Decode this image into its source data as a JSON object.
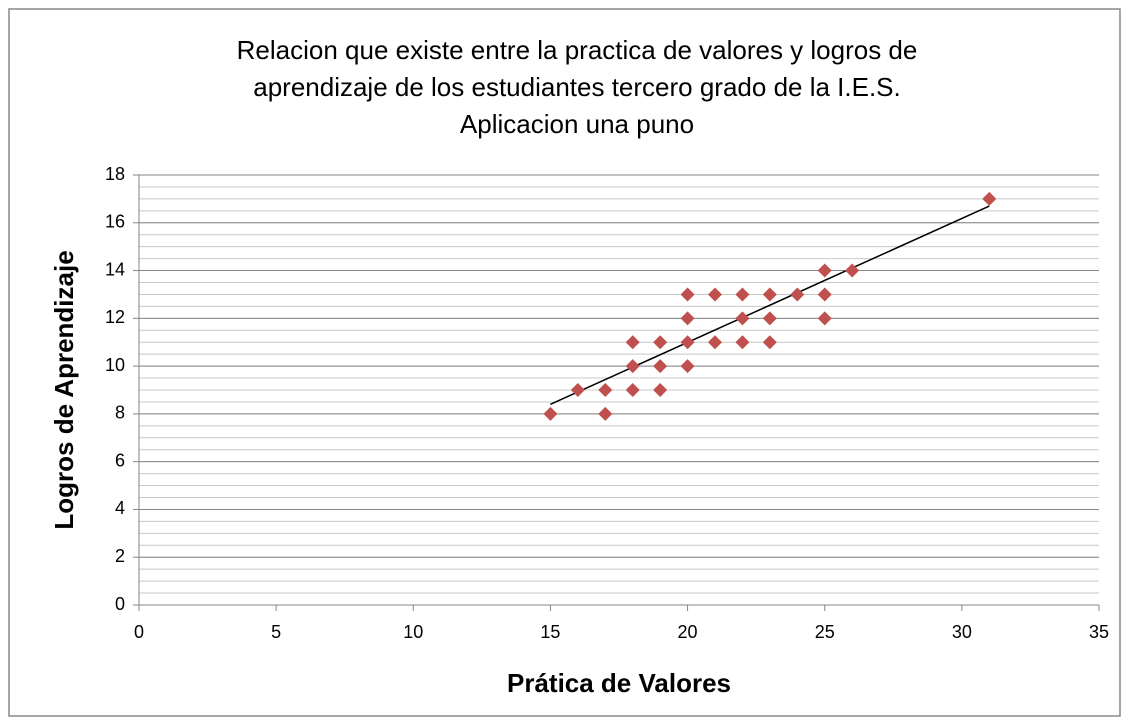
{
  "chart_data": {
    "type": "scatter",
    "title": [
      "Relacion  que existe entre la practica de valores y logros de",
      "aprendizaje de los estudiantes  tercero grado de la I.E.S.",
      "Aplicacion una puno"
    ],
    "xlabel": "Prática de Valores",
    "ylabel": "Logros de Aprendizaje",
    "series": [
      {
        "color": "#c0504d",
        "x": [
          15,
          16,
          17,
          17,
          18,
          18,
          18,
          19,
          19,
          19,
          20,
          20,
          20,
          20,
          21,
          21,
          22,
          22,
          22,
          23,
          23,
          23,
          24,
          25,
          25,
          25,
          26,
          31
        ],
        "values": [
          8,
          9,
          9,
          8,
          11,
          10,
          9,
          11,
          10,
          9,
          13,
          12,
          11,
          10,
          13,
          11,
          13,
          12,
          11,
          13,
          12,
          11,
          13,
          14,
          13,
          12,
          14,
          17
        ]
      }
    ],
    "trendline": {
      "color": "#000000",
      "x": [
        15,
        31
      ],
      "values": [
        8.4,
        16.7
      ]
    },
    "xlim": [
      0,
      35
    ],
    "xticks": [
      0,
      5,
      10,
      15,
      20,
      25,
      30,
      35
    ],
    "ylim": [
      0,
      18
    ],
    "yticks": [
      0,
      2,
      4,
      6,
      8,
      10,
      12,
      14,
      16,
      18
    ],
    "yminor": 0.5,
    "grid": true
  }
}
